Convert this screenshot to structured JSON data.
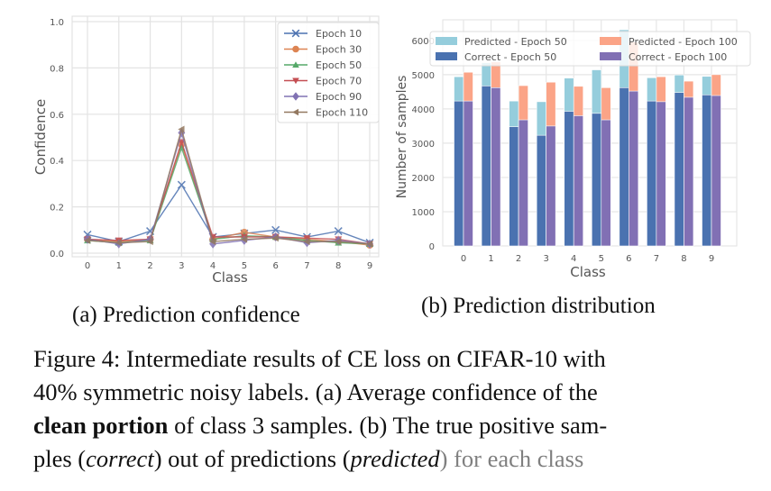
{
  "figure": {
    "subcaption_a": "(a) Prediction confidence",
    "subcaption_b": "(b) Prediction distribution",
    "caption": {
      "line1": "Figure 4: Intermediate results of CE loss on CIFAR-10 with",
      "line2": "40% symmetric noisy labels. (a) Average confidence of the",
      "line3_bold": "clean portion",
      "line3_rest": " of class 3 samples. (b) The true positive sam-",
      "line4_a": "ples (",
      "line4_italic1": "correct",
      "line4_b": ") out of predictions (",
      "line4_italic2": "predicted",
      "line4_c": ") for each class"
    }
  },
  "chart_data": [
    {
      "type": "line",
      "title": "",
      "xlabel": "Class",
      "ylabel": "Confidence",
      "x": [
        0,
        1,
        2,
        3,
        4,
        5,
        6,
        7,
        8,
        9
      ],
      "xticks": [
        "0",
        "1",
        "2",
        "3",
        "4",
        "5",
        "6",
        "7",
        "8",
        "9"
      ],
      "ylim": [
        0,
        1.0
      ],
      "yticks": [
        "0.0",
        "0.2",
        "0.4",
        "0.6",
        "0.8",
        "1.0"
      ],
      "grid": true,
      "legend_position": "top-right",
      "series": [
        {
          "name": "Epoch 10",
          "color": "#4c72b0",
          "marker": "x",
          "values": [
            0.08,
            0.05,
            0.095,
            0.295,
            0.07,
            0.085,
            0.1,
            0.07,
            0.095,
            0.045
          ]
        },
        {
          "name": "Epoch 30",
          "color": "#dd8452",
          "marker": "circle",
          "values": [
            0.06,
            0.05,
            0.06,
            0.47,
            0.06,
            0.09,
            0.07,
            0.06,
            0.05,
            0.035
          ]
        },
        {
          "name": "Epoch 50",
          "color": "#55a868",
          "marker": "triangle-up",
          "values": [
            0.055,
            0.045,
            0.055,
            0.455,
            0.06,
            0.075,
            0.07,
            0.055,
            0.045,
            0.04
          ]
        },
        {
          "name": "Epoch 70",
          "color": "#c44e52",
          "marker": "triangle-down",
          "values": [
            0.06,
            0.055,
            0.06,
            0.48,
            0.07,
            0.07,
            0.07,
            0.065,
            0.06,
            0.04
          ]
        },
        {
          "name": "Epoch 90",
          "color": "#8172b3",
          "marker": "diamond",
          "values": [
            0.06,
            0.04,
            0.06,
            0.52,
            0.04,
            0.055,
            0.07,
            0.045,
            0.055,
            0.04
          ]
        },
        {
          "name": "Epoch 110",
          "color": "#937860",
          "marker": "triangle-left",
          "values": [
            0.055,
            0.045,
            0.05,
            0.535,
            0.05,
            0.06,
            0.065,
            0.05,
            0.05,
            0.04
          ]
        }
      ]
    },
    {
      "type": "bar",
      "title": "",
      "xlabel": "Class",
      "ylabel": "Number of samples",
      "categories": [
        "0",
        "1",
        "2",
        "3",
        "4",
        "5",
        "6",
        "7",
        "8",
        "9"
      ],
      "ylim": [
        0,
        6600
      ],
      "yticks": [
        "0",
        "1000",
        "2000",
        "3000",
        "4000",
        "5000",
        "6000"
      ],
      "grid": true,
      "legend_position": "top",
      "series": [
        {
          "name": "Predicted - Epoch 50",
          "color": "#95cddc",
          "group": "epoch50",
          "values": [
            4940,
            5350,
            4230,
            4210,
            4900,
            5140,
            6310,
            4910,
            4990,
            4950
          ]
        },
        {
          "name": "Correct - Epoch 50",
          "color": "#4a72b0",
          "group": "epoch50",
          "values": [
            4230,
            4670,
            3480,
            3230,
            3930,
            3870,
            4620,
            4230,
            4480,
            4410
          ]
        },
        {
          "name": "Predicted - Epoch 100",
          "color": "#fba487",
          "group": "epoch100",
          "values": [
            5070,
            5370,
            4680,
            4780,
            4660,
            4620,
            5950,
            4940,
            4810,
            5000
          ]
        },
        {
          "name": "Correct - Epoch 100",
          "color": "#8170b4",
          "group": "epoch100",
          "values": [
            4230,
            4620,
            3680,
            3500,
            3800,
            3680,
            4520,
            4210,
            4340,
            4390
          ]
        }
      ]
    }
  ]
}
